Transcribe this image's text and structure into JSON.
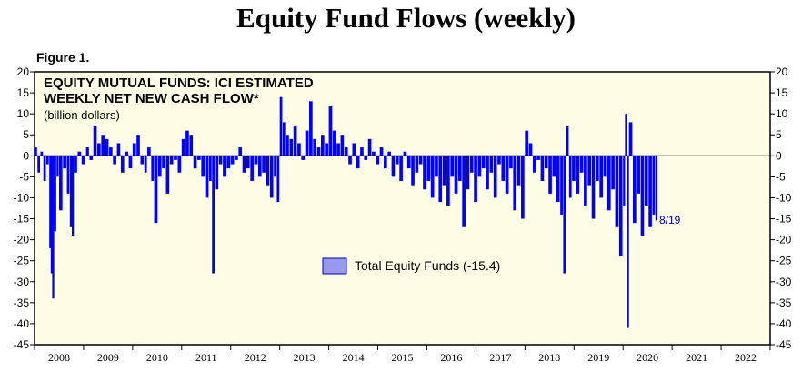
{
  "page": {
    "title": "Equity Fund Flows (weekly)",
    "figure_label": "Figure 1."
  },
  "chart_data": {
    "type": "bar",
    "title": "EQUITY MUTUAL FUNDS: ICI ESTIMATED WEEKLY NET NEW CASH FLOW*",
    "title_lines": [
      "EQUITY MUTUAL FUNDS: ICI ESTIMATED",
      "WEEKLY NET NEW CASH FLOW*"
    ],
    "subtitle": "(billion dollars)",
    "ylim": [
      -45,
      20
    ],
    "yticks": [
      20,
      15,
      10,
      5,
      0,
      -5,
      -10,
      -15,
      -20,
      -25,
      -30,
      -35,
      -40,
      -45
    ],
    "xlim": [
      2008,
      2023
    ],
    "year_labels": [
      "2008",
      "2009",
      "2010",
      "2011",
      "2012",
      "2013",
      "2014",
      "2015",
      "2016",
      "2017",
      "2018",
      "2019",
      "2020",
      "2021",
      "2022"
    ],
    "series": [
      {
        "name": "Total Equity Funds (-15.4)",
        "color": "#0000ff",
        "legend_fill": "#9999ee",
        "points": [
          [
            2008.0,
            2
          ],
          [
            2008.06,
            -4
          ],
          [
            2008.12,
            1
          ],
          [
            2008.18,
            -6
          ],
          [
            2008.24,
            -2
          ],
          [
            2008.3,
            -22
          ],
          [
            2008.33,
            -28
          ],
          [
            2008.36,
            -34
          ],
          [
            2008.4,
            -18
          ],
          [
            2008.45,
            -5
          ],
          [
            2008.5,
            -13
          ],
          [
            2008.58,
            -3
          ],
          [
            2008.66,
            -9
          ],
          [
            2008.72,
            -17
          ],
          [
            2008.76,
            -19
          ],
          [
            2008.8,
            -4
          ],
          [
            2008.88,
            1
          ],
          [
            2008.96,
            -2
          ],
          [
            2009.05,
            2
          ],
          [
            2009.12,
            -1
          ],
          [
            2009.2,
            7
          ],
          [
            2009.28,
            3
          ],
          [
            2009.36,
            5
          ],
          [
            2009.44,
            4
          ],
          [
            2009.52,
            2
          ],
          [
            2009.6,
            -2
          ],
          [
            2009.68,
            3
          ],
          [
            2009.76,
            -4
          ],
          [
            2009.84,
            1
          ],
          [
            2009.92,
            -3
          ],
          [
            2010.0,
            3
          ],
          [
            2010.08,
            5
          ],
          [
            2010.16,
            -2
          ],
          [
            2010.24,
            -4
          ],
          [
            2010.3,
            2
          ],
          [
            2010.38,
            -6
          ],
          [
            2010.44,
            -16
          ],
          [
            2010.52,
            -5
          ],
          [
            2010.6,
            -3
          ],
          [
            2010.68,
            -9
          ],
          [
            2010.76,
            -2
          ],
          [
            2010.84,
            -1
          ],
          [
            2010.92,
            -4
          ],
          [
            2011.0,
            4
          ],
          [
            2011.08,
            6
          ],
          [
            2011.16,
            5
          ],
          [
            2011.24,
            -3
          ],
          [
            2011.32,
            -1
          ],
          [
            2011.4,
            -5
          ],
          [
            2011.48,
            -10
          ],
          [
            2011.56,
            -6
          ],
          [
            2011.62,
            -28
          ],
          [
            2011.68,
            -8
          ],
          [
            2011.76,
            -2
          ],
          [
            2011.84,
            -5
          ],
          [
            2011.92,
            -3
          ],
          [
            2012.0,
            -2
          ],
          [
            2012.08,
            -1
          ],
          [
            2012.16,
            2
          ],
          [
            2012.24,
            -4
          ],
          [
            2012.32,
            -3
          ],
          [
            2012.4,
            -6
          ],
          [
            2012.48,
            -2
          ],
          [
            2012.56,
            -5
          ],
          [
            2012.64,
            -4
          ],
          [
            2012.72,
            -7
          ],
          [
            2012.8,
            -10
          ],
          [
            2012.88,
            -5
          ],
          [
            2012.94,
            -11
          ],
          [
            2013.0,
            14
          ],
          [
            2013.06,
            8
          ],
          [
            2013.12,
            5
          ],
          [
            2013.2,
            4
          ],
          [
            2013.28,
            7
          ],
          [
            2013.36,
            3
          ],
          [
            2013.44,
            -1
          ],
          [
            2013.52,
            6
          ],
          [
            2013.6,
            13
          ],
          [
            2013.68,
            4
          ],
          [
            2013.76,
            2
          ],
          [
            2013.84,
            5
          ],
          [
            2013.92,
            3
          ],
          [
            2014.0,
            12
          ],
          [
            2014.08,
            6
          ],
          [
            2014.16,
            3
          ],
          [
            2014.24,
            5
          ],
          [
            2014.32,
            2
          ],
          [
            2014.4,
            -2
          ],
          [
            2014.48,
            3
          ],
          [
            2014.56,
            -3
          ],
          [
            2014.64,
            2
          ],
          [
            2014.72,
            -1
          ],
          [
            2014.8,
            4
          ],
          [
            2014.88,
            1
          ],
          [
            2014.96,
            -2
          ],
          [
            2015.04,
            2
          ],
          [
            2015.12,
            -3
          ],
          [
            2015.2,
            1
          ],
          [
            2015.28,
            -5
          ],
          [
            2015.36,
            -2
          ],
          [
            2015.44,
            -6
          ],
          [
            2015.52,
            1
          ],
          [
            2015.6,
            -3
          ],
          [
            2015.68,
            -7
          ],
          [
            2015.76,
            -4
          ],
          [
            2015.84,
            -2
          ],
          [
            2015.92,
            -8
          ],
          [
            2016.0,
            -6
          ],
          [
            2016.08,
            -10
          ],
          [
            2016.16,
            -5
          ],
          [
            2016.24,
            -11
          ],
          [
            2016.32,
            -7
          ],
          [
            2016.4,
            -12
          ],
          [
            2016.48,
            -5
          ],
          [
            2016.56,
            -9
          ],
          [
            2016.64,
            -6
          ],
          [
            2016.72,
            -17
          ],
          [
            2016.8,
            -8
          ],
          [
            2016.88,
            -4
          ],
          [
            2016.96,
            -11
          ],
          [
            2017.04,
            -5
          ],
          [
            2017.12,
            -3
          ],
          [
            2017.2,
            -8
          ],
          [
            2017.28,
            -4
          ],
          [
            2017.36,
            -10
          ],
          [
            2017.44,
            -2
          ],
          [
            2017.52,
            -6
          ],
          [
            2017.6,
            -9
          ],
          [
            2017.68,
            -3
          ],
          [
            2017.76,
            -13
          ],
          [
            2017.84,
            -7
          ],
          [
            2017.92,
            -15
          ],
          [
            2018.0,
            6
          ],
          [
            2018.08,
            3
          ],
          [
            2018.16,
            -4
          ],
          [
            2018.24,
            -1
          ],
          [
            2018.32,
            -6
          ],
          [
            2018.4,
            -3
          ],
          [
            2018.48,
            -9
          ],
          [
            2018.56,
            -5
          ],
          [
            2018.64,
            -11
          ],
          [
            2018.72,
            -14
          ],
          [
            2018.78,
            -28
          ],
          [
            2018.84,
            7
          ],
          [
            2018.9,
            -10
          ],
          [
            2018.96,
            -6
          ],
          [
            2019.04,
            -9
          ],
          [
            2019.12,
            -4
          ],
          [
            2019.2,
            -12
          ],
          [
            2019.28,
            -7
          ],
          [
            2019.36,
            -15
          ],
          [
            2019.44,
            -6
          ],
          [
            2019.52,
            -10
          ],
          [
            2019.6,
            -5
          ],
          [
            2019.68,
            -13
          ],
          [
            2019.76,
            -8
          ],
          [
            2019.84,
            -17
          ],
          [
            2019.92,
            -24
          ],
          [
            2020.0,
            -12
          ],
          [
            2020.04,
            10
          ],
          [
            2020.08,
            -41
          ],
          [
            2020.12,
            8
          ],
          [
            2020.2,
            -16
          ],
          [
            2020.28,
            -9
          ],
          [
            2020.36,
            -19
          ],
          [
            2020.44,
            -12
          ],
          [
            2020.52,
            -17
          ],
          [
            2020.6,
            -14
          ],
          [
            2020.66,
            -15.4
          ]
        ]
      }
    ],
    "annotation": "8/19",
    "grid": false
  }
}
